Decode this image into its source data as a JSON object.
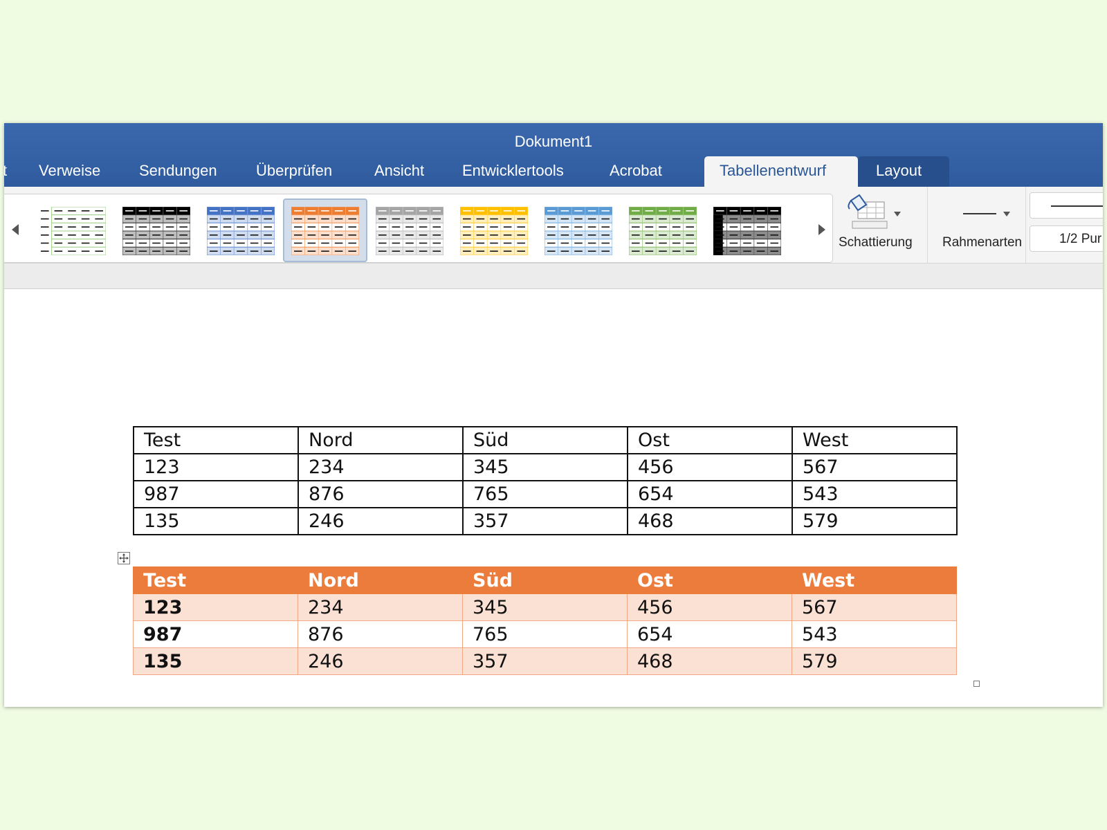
{
  "window": {
    "title": "Dokument1"
  },
  "tabs": [
    {
      "label": "t"
    },
    {
      "label": "Verweise"
    },
    {
      "label": "Sendungen"
    },
    {
      "label": "Überprüfen"
    },
    {
      "label": "Ansicht"
    },
    {
      "label": "Entwicklertools"
    },
    {
      "label": "Acrobat"
    },
    {
      "label": "Tabellenentwurf",
      "active": true
    },
    {
      "label": "Layout"
    }
  ],
  "ribbon": {
    "table_styles": [
      {
        "name": "plain-green-grid",
        "accent": "#70ad47",
        "selected": false
      },
      {
        "name": "grid-black",
        "accent": "#000000",
        "selected": false
      },
      {
        "name": "grid-blue",
        "accent": "#4472c4",
        "selected": false
      },
      {
        "name": "grid-orange",
        "accent": "#ed7d31",
        "selected": true
      },
      {
        "name": "grid-gray",
        "accent": "#a5a5a5",
        "selected": false
      },
      {
        "name": "grid-gold",
        "accent": "#ffc000",
        "selected": false
      },
      {
        "name": "grid-lightblue",
        "accent": "#5b9bd5",
        "selected": false
      },
      {
        "name": "grid-green",
        "accent": "#70ad47",
        "selected": false
      },
      {
        "name": "grid-dark",
        "accent": "#000000",
        "selected": false
      }
    ],
    "shading_label": "Schattierung",
    "border_styles_label": "Rahmenarten",
    "pen_weight": "1/2 Pur"
  },
  "tables": {
    "plain": {
      "rows": [
        [
          "Test",
          "Nord",
          "Süd",
          "Ost",
          "West"
        ],
        [
          "123",
          "234",
          "345",
          "456",
          "567"
        ],
        [
          "987",
          "876",
          "765",
          "654",
          "543"
        ],
        [
          "135",
          "246",
          "357",
          "468",
          "579"
        ]
      ]
    },
    "orange": {
      "header_color": "#ec7c3c",
      "band_color": "#fbe1d3",
      "rows": [
        [
          "Test",
          "Nord",
          "Süd",
          "Ost",
          "West"
        ],
        [
          "123",
          "234",
          "345",
          "456",
          "567"
        ],
        [
          "987",
          "876",
          "765",
          "654",
          "543"
        ],
        [
          "135",
          "246",
          "357",
          "468",
          "579"
        ]
      ]
    }
  },
  "colors": {
    "titlebar": "#3b68ad",
    "background": "#f0fce2",
    "active_tab_text": "#2a5697"
  }
}
